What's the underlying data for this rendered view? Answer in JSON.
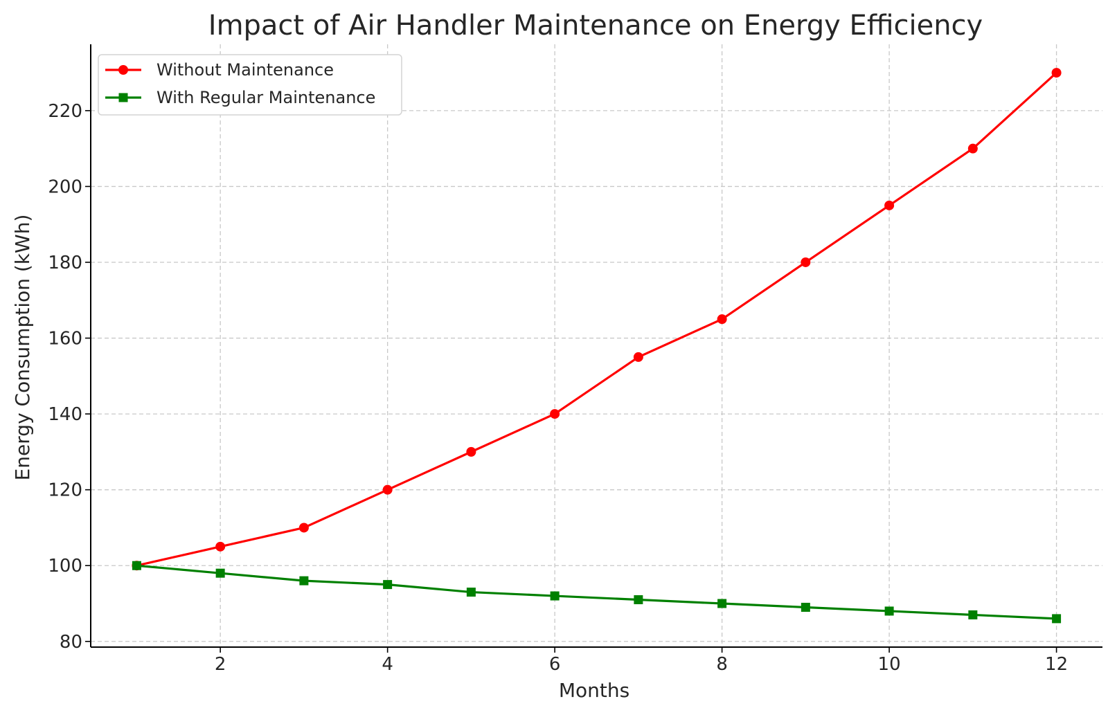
{
  "chart_data": {
    "type": "line",
    "title": "Impact of Air Handler Maintenance on Energy Efficiency",
    "xlabel": "Months",
    "ylabel": "Energy Consumption (kWh)",
    "x": [
      1,
      2,
      3,
      4,
      5,
      6,
      7,
      8,
      9,
      10,
      11,
      12
    ],
    "xlim": [
      0.45,
      12.55
    ],
    "ylim": [
      78.5,
      237.5
    ],
    "xticks": [
      2,
      4,
      6,
      8,
      10,
      12
    ],
    "yticks": [
      80,
      100,
      120,
      140,
      160,
      180,
      200,
      220
    ],
    "grid": true,
    "legend_position": "top-left",
    "series": [
      {
        "name": "Without Maintenance",
        "color": "#ff0000",
        "marker": "circle",
        "values": [
          100,
          105,
          110,
          120,
          130,
          140,
          155,
          165,
          180,
          195,
          210,
          230
        ]
      },
      {
        "name": "With Regular Maintenance",
        "color": "#008000",
        "marker": "square",
        "values": [
          100,
          98,
          96,
          95,
          93,
          92,
          91,
          90,
          89,
          88,
          87,
          86
        ]
      }
    ]
  }
}
